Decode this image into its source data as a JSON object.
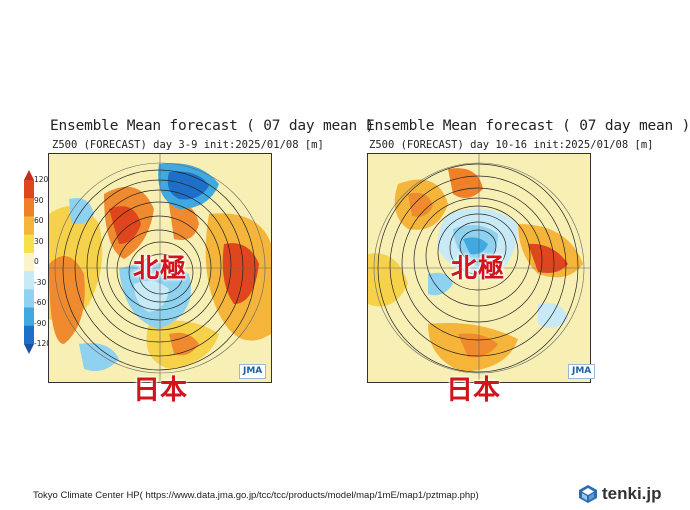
{
  "panels": [
    {
      "title": "Ensemble Mean forecast ( 07 day mean )",
      "subtitle": "Z500 (FORECAST) day 3-9 init:2025/01/08 [m]",
      "pole_label": "北極",
      "japan_label": "日本",
      "logo": "JMA"
    },
    {
      "title": "Ensemble Mean forecast ( 07 day mean )",
      "subtitle": "Z500 (FORECAST) day 10-16 init:2025/01/08 [m]",
      "pole_label": "北極",
      "japan_label": "日本",
      "logo": "JMA"
    }
  ],
  "colorbar": {
    "ticks": [
      "120",
      "90",
      "60",
      "30",
      "0",
      "-30",
      "-60",
      "-90",
      "-120"
    ],
    "colors": [
      "#e0461e",
      "#f08028",
      "#f5b53a",
      "#f7e04a",
      "#fbf4c8",
      "#c8eaf7",
      "#8fd2f0",
      "#3fa9e0",
      "#1e6fc8"
    ]
  },
  "footer": {
    "source": "Tokyo Climate Center HP( https://www.data.jma.go.jp/tcc/tcc/products/model/map/1mE/map1/pztmap.php)",
    "brand": "tenki.jp"
  }
}
